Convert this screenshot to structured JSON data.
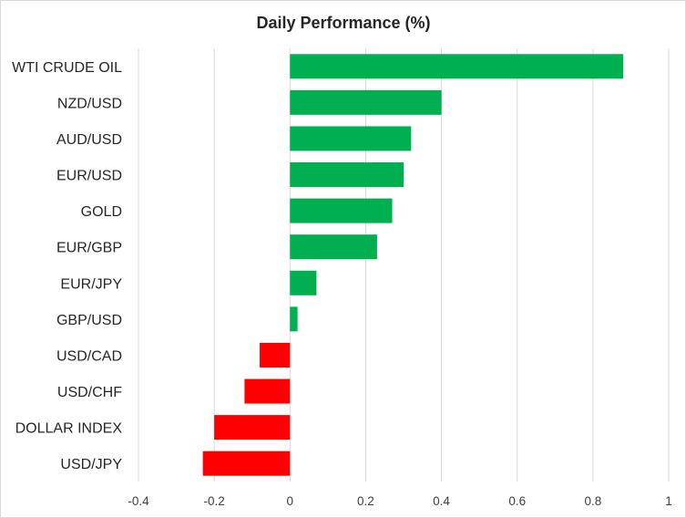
{
  "chart_data": {
    "type": "bar",
    "orientation": "horizontal",
    "title": "Daily Performance (%)",
    "xlabel": "",
    "ylabel": "",
    "categories": [
      "WTI CRUDE OIL",
      "NZD/USD",
      "AUD/USD",
      "EUR/USD",
      "GOLD",
      "EUR/GBP",
      "EUR/JPY",
      "GBP/USD",
      "USD/CAD",
      "USD/CHF",
      "DOLLAR INDEX",
      "USD/JPY"
    ],
    "values": [
      0.88,
      0.4,
      0.32,
      0.3,
      0.27,
      0.23,
      0.07,
      0.02,
      -0.08,
      -0.12,
      -0.2,
      -0.23
    ],
    "xlim": [
      -0.4,
      1
    ],
    "ticks": [
      -0.4,
      -0.2,
      0,
      0.2,
      0.4,
      0.6,
      0.8,
      1
    ],
    "tick_labels": [
      "-0.4",
      "-0.2",
      "0",
      "0.2",
      "0.4",
      "0.6",
      "0.8",
      "1"
    ],
    "grid": true,
    "legend": "none",
    "colors": {
      "positive": "#00b050",
      "negative": "#ff0000",
      "grid": "#d9d9d9",
      "text": "#262626"
    }
  }
}
